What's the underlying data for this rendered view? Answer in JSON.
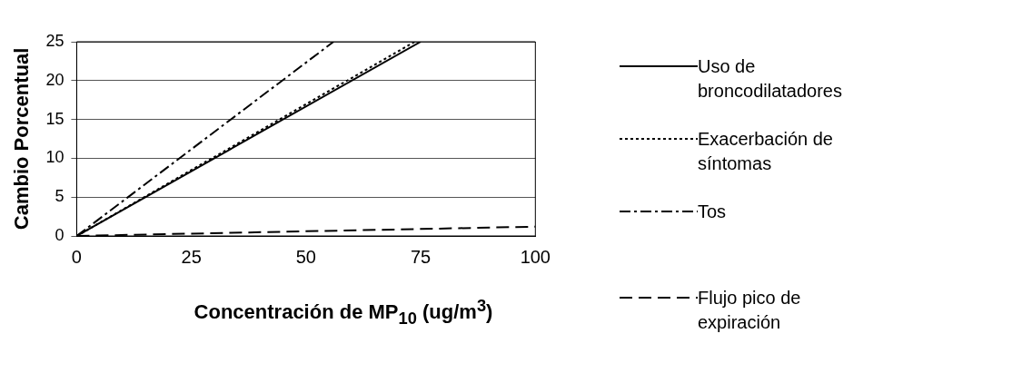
{
  "chart_data": {
    "type": "line",
    "xlabel": "Concentración de MP$_{10}$ (ug/m$^{3}$)",
    "ylabel": "Cambio Porcentual",
    "xlim": [
      0,
      100
    ],
    "xticks": [
      0,
      25,
      50,
      75,
      100
    ],
    "ylim": [
      0,
      25
    ],
    "yticks": [
      0,
      5,
      10,
      15,
      20,
      25
    ],
    "grid": "y",
    "legend": "right",
    "series": [
      {
        "name": "Uso de broncodilatadores",
        "color": "#000000",
        "line_style": "solid",
        "x": [
          0,
          75
        ],
        "values": [
          0,
          25
        ]
      },
      {
        "name": "Exacerbación de síntomas",
        "color": "#000000",
        "line_style": "dotted",
        "x": [
          0,
          73.7
        ],
        "values": [
          0,
          25
        ]
      },
      {
        "name": "Tos",
        "color": "#000000",
        "line_style": "dashdot",
        "x": [
          0,
          56
        ],
        "values": [
          0,
          25
        ]
      },
      {
        "name": "Flujo pico de expiración",
        "color": "#000000",
        "line_style": "dashed",
        "x": [
          0,
          100
        ],
        "values": [
          0,
          1.2
        ]
      }
    ]
  }
}
